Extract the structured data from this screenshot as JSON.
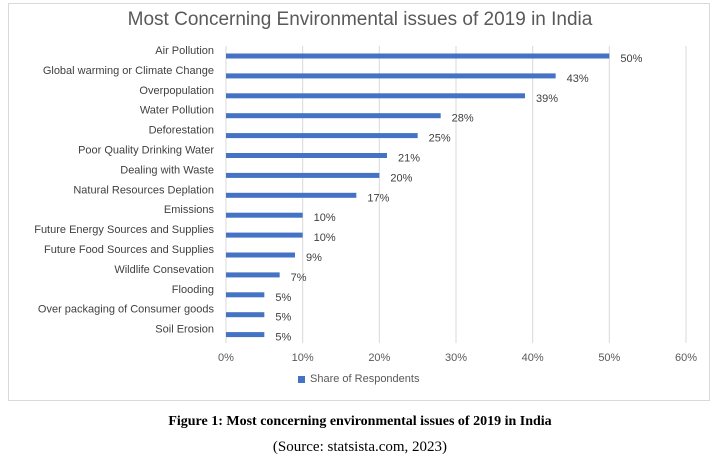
{
  "chart_data": {
    "type": "bar",
    "orientation": "horizontal",
    "title": "Most Concerning Environmental issues of 2019 in India",
    "categories": [
      "Air Pollution",
      "Global warming or Climate Change",
      "Overpopulation",
      "Water Pollution",
      "Deforestation",
      "Poor Quality Drinking Water",
      "Dealing with Waste",
      "Natural Resources Deplation",
      "Emissions",
      "Future Energy Sources and Supplies",
      "Future Food Sources and Supplies",
      "Wildlife Consevation",
      "Flooding",
      "Over packaging of Consumer goods",
      "Soil Erosion"
    ],
    "series": [
      {
        "name": "Share of Respondents",
        "values": [
          50,
          43,
          39,
          28,
          25,
          21,
          20,
          17,
          10,
          10,
          9,
          7,
          5,
          5,
          5
        ]
      }
    ],
    "value_labels": [
      "50%",
      "43%",
      "39%",
      "28%",
      "25%",
      "21%",
      "20%",
      "17%",
      "10%",
      "10%",
      "9%",
      "7%",
      "5%",
      "5%",
      "5%"
    ],
    "xlim": [
      0,
      60
    ],
    "x_ticks": [
      "0%",
      "10%",
      "20%",
      "30%",
      "40%",
      "50%",
      "60%"
    ],
    "x_tick_values": [
      0,
      10,
      20,
      30,
      40,
      50,
      60
    ],
    "grid": "vertical",
    "legend": "bottom",
    "bar_color": "#4472c4"
  },
  "caption": {
    "title": "Figure 1: Most concerning environmental issues of 2019 in India",
    "source": "(Source: statsista.com, 2023)"
  }
}
